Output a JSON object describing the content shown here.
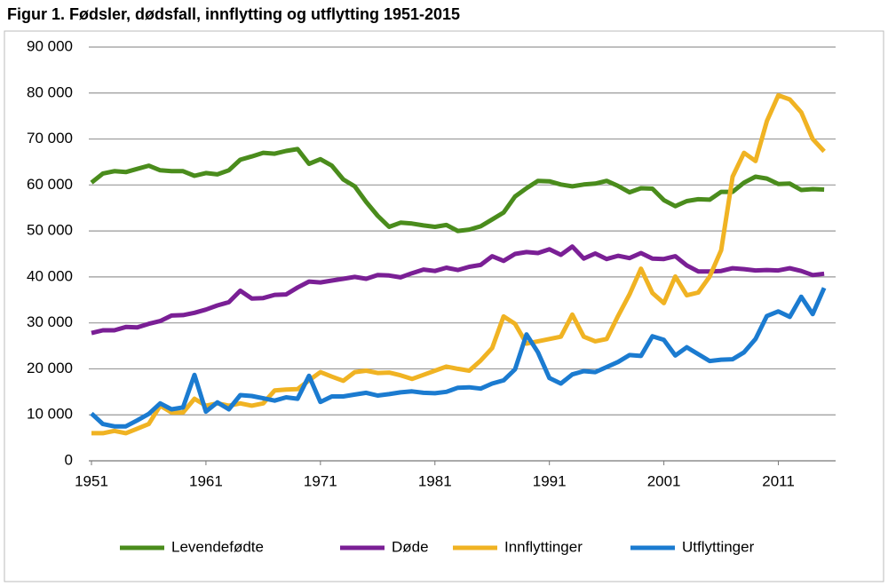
{
  "chart_data": {
    "type": "line",
    "title": "Figur 1. Fødsler, dødsfall, innflytting og utflytting 1951-2015",
    "x": [
      1951,
      1952,
      1953,
      1954,
      1955,
      1956,
      1957,
      1958,
      1959,
      1960,
      1961,
      1962,
      1963,
      1964,
      1965,
      1966,
      1967,
      1968,
      1969,
      1970,
      1971,
      1972,
      1973,
      1974,
      1975,
      1976,
      1977,
      1978,
      1979,
      1980,
      1981,
      1982,
      1983,
      1984,
      1985,
      1986,
      1987,
      1988,
      1989,
      1990,
      1991,
      1992,
      1993,
      1994,
      1995,
      1996,
      1997,
      1998,
      1999,
      2000,
      2001,
      2002,
      2003,
      2004,
      2005,
      2006,
      2007,
      2008,
      2009,
      2010,
      2011,
      2012,
      2013,
      2014,
      2015
    ],
    "xlim": [
      1951,
      2016
    ],
    "xticks": [
      1951,
      1961,
      1971,
      1981,
      1991,
      2001,
      2011
    ],
    "ylim": [
      0,
      90000
    ],
    "yticks": [
      0,
      {
        "value": 10000,
        "label": "10 000"
      },
      {
        "value": 20000,
        "label": "20 000"
      },
      {
        "value": 30000,
        "label": "30 000"
      },
      {
        "value": 40000,
        "label": "40 000"
      },
      {
        "value": 50000,
        "label": "50 000"
      },
      {
        "value": 60000,
        "label": "60 000"
      },
      {
        "value": 70000,
        "label": "70 000"
      },
      {
        "value": 80000,
        "label": "80 000"
      },
      {
        "value": 90000,
        "label": "90 000"
      }
    ],
    "grid": true,
    "legend": "bottom",
    "series": [
      {
        "name": "Levendefødte",
        "color": "#4a8c1c",
        "values": [
          60500,
          62500,
          63000,
          62800,
          63500,
          64200,
          63200,
          63000,
          63000,
          62000,
          62600,
          62300,
          63200,
          65500,
          66200,
          67000,
          66800,
          67400,
          67800,
          64600,
          65600,
          64200,
          61200,
          59700,
          56300,
          53300,
          50900,
          51800,
          51600,
          51200,
          50900,
          51300,
          50000,
          50300,
          51000,
          52500,
          54000,
          57500,
          59300,
          60900,
          60800,
          60100,
          59700,
          60100,
          60300,
          60900,
          59800,
          58400,
          59300,
          59200,
          56700,
          55400,
          56500,
          56900,
          56800,
          58500,
          58500,
          60500,
          61800,
          61400,
          60200,
          60300,
          58900,
          59100,
          59000
        ]
      },
      {
        "name": "Døde",
        "color": "#7a1f95",
        "values": [
          27800,
          28400,
          28400,
          29100,
          29000,
          29800,
          30400,
          31600,
          31700,
          32200,
          32900,
          33800,
          34500,
          37000,
          35300,
          35400,
          36100,
          36200,
          37700,
          39000,
          38800,
          39200,
          39600,
          40000,
          39600,
          40400,
          40300,
          39900,
          40800,
          41600,
          41300,
          42000,
          41500,
          42200,
          42600,
          44500,
          43500,
          45000,
          45400,
          45200,
          46000,
          44800,
          46600,
          44000,
          45100,
          43900,
          44600,
          44100,
          45200,
          44000,
          43900,
          44500,
          42500,
          41200,
          41200,
          41300,
          41900,
          41700,
          41400,
          41500,
          41400,
          41900,
          41300,
          40400,
          40700
        ]
      },
      {
        "name": "Innflyttinger",
        "color": "#f0b323",
        "values": [
          6000,
          6000,
          6500,
          6000,
          7000,
          8000,
          12000,
          10500,
          10500,
          13500,
          12000,
          12500,
          12000,
          12500,
          12000,
          12500,
          15300,
          15500,
          15600,
          17500,
          19300,
          18300,
          17400,
          19300,
          19600,
          19100,
          19200,
          18600,
          17800,
          18700,
          19600,
          20500,
          20000,
          19600,
          21800,
          24500,
          31400,
          29800,
          25500,
          26000,
          26500,
          27000,
          31800,
          27000,
          26000,
          26500,
          31500,
          36200,
          41800,
          36500,
          34300,
          40100,
          36000,
          36600,
          40100,
          45800,
          61800,
          67000,
          65200,
          73900,
          79500,
          78600,
          75800,
          70000,
          67300
        ]
      },
      {
        "name": "Utflyttinger",
        "color": "#1b7bd0",
        "values": [
          10300,
          8000,
          7500,
          7500,
          8800,
          10200,
          12500,
          11200,
          11600,
          18700,
          10700,
          12700,
          11200,
          14300,
          14100,
          13600,
          13100,
          13800,
          13500,
          18500,
          12800,
          14000,
          14000,
          14400,
          14800,
          14200,
          14500,
          14900,
          15100,
          14800,
          14700,
          15000,
          15900,
          16000,
          15700,
          16800,
          17500,
          19900,
          27500,
          23600,
          18000,
          16800,
          18800,
          19500,
          19300,
          20400,
          21500,
          23000,
          22800,
          27100,
          26300,
          22900,
          24700,
          23200,
          21700,
          22000,
          22100,
          23600,
          26500,
          31500,
          32500,
          31300,
          35700,
          31900,
          37600
        ]
      }
    ]
  }
}
